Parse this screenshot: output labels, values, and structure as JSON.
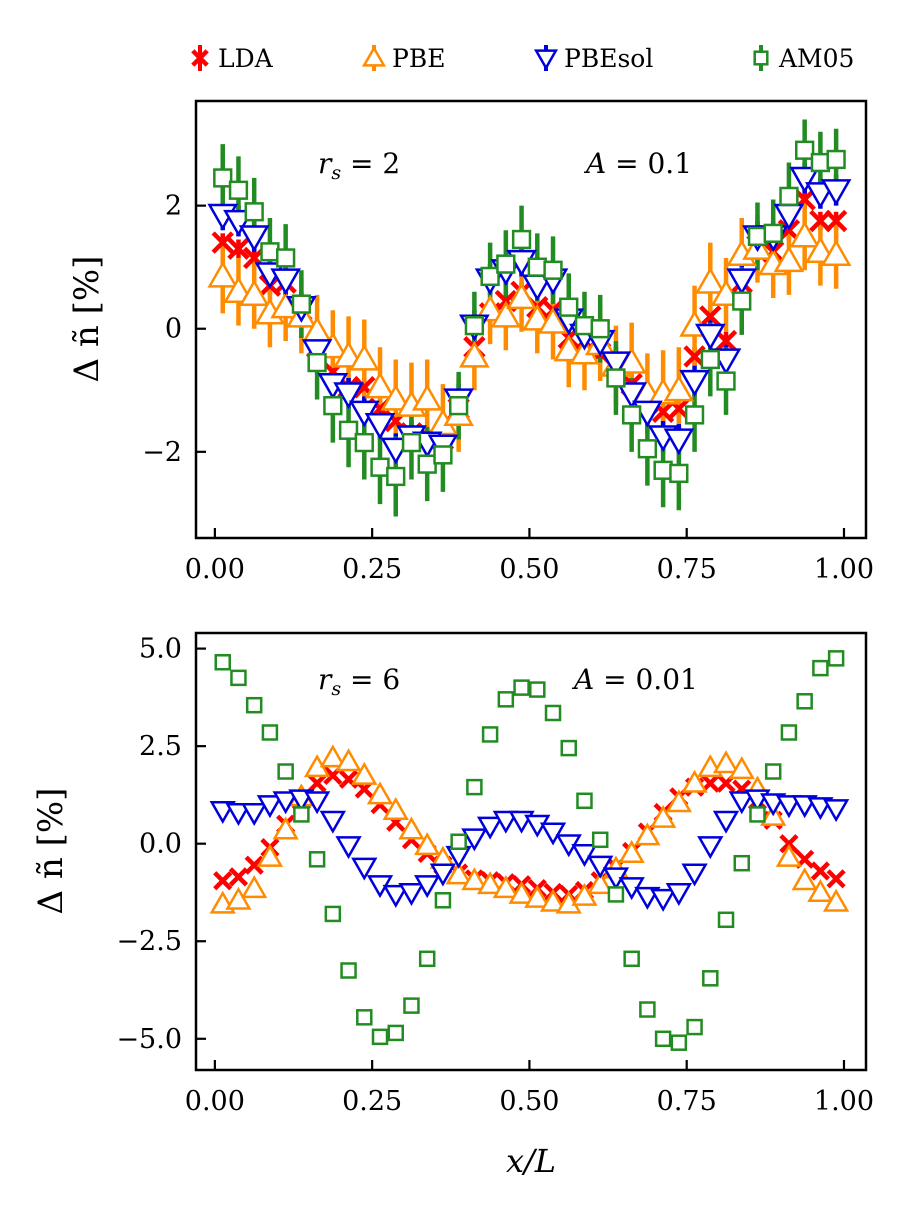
{
  "colors": {
    "LDA": "#ff0000",
    "PBE": "#ff8c00",
    "PBEsol": "#0000dd",
    "AM05": "#228b22"
  },
  "legend": [
    {
      "key": "LDA",
      "label": "LDA",
      "marker": "x"
    },
    {
      "key": "PBE",
      "label": "PBE",
      "marker": "triangle-up"
    },
    {
      "key": "PBEsol",
      "label": "PBEsol",
      "marker": "triangle-down"
    },
    {
      "key": "AM05",
      "label": "AM05",
      "marker": "square"
    }
  ],
  "chart_data": [
    {
      "type": "scatter",
      "xlabel": "",
      "ylabel": "Δ ñ [%]",
      "xlim": [
        -0.03,
        1.035
      ],
      "ylim": [
        -3.4,
        3.7
      ],
      "xticks": [
        0.0,
        0.25,
        0.5,
        0.75,
        1.0
      ],
      "xtick_labels": [
        "0.00",
        "0.25",
        "0.50",
        "0.75",
        "1.00"
      ],
      "yticks": [
        -2,
        0,
        2
      ],
      "ytick_labels": [
        "−2",
        "0",
        "2"
      ],
      "annotations": [
        {
          "text": "r_s = 2",
          "x": 0.25,
          "y": 2.7
        },
        {
          "text": "A = 0.1",
          "x": 0.7,
          "y": 2.7
        }
      ],
      "x": [
        0.0125,
        0.0375,
        0.0625,
        0.0875,
        0.1125,
        0.1375,
        0.1625,
        0.1875,
        0.2125,
        0.2375,
        0.2625,
        0.2875,
        0.3125,
        0.3375,
        0.3625,
        0.3875,
        0.4125,
        0.4375,
        0.4625,
        0.4875,
        0.5125,
        0.5375,
        0.5625,
        0.5875,
        0.6125,
        0.6375,
        0.6625,
        0.6875,
        0.7125,
        0.7375,
        0.7625,
        0.7875,
        0.8125,
        0.8375,
        0.8625,
        0.8875,
        0.9125,
        0.9375,
        0.9625,
        0.9875
      ],
      "series": [
        {
          "name": "LDA",
          "values": [
            1.4,
            1.3,
            1.15,
            0.7,
            0.75,
            0.3,
            -0.3,
            -0.7,
            -0.95,
            -0.95,
            -1.3,
            -1.5,
            -1.7,
            -1.75,
            -1.8,
            -1.3,
            -0.3,
            0.25,
            0.45,
            0.6,
            0.35,
            0.3,
            -0.15,
            -0.2,
            -0.4,
            -0.6,
            -0.9,
            -1.2,
            -1.35,
            -1.3,
            -0.45,
            0.2,
            -0.2,
            0.75,
            1.35,
            1.25,
            1.6,
            2.1,
            1.75,
            1.75
          ],
          "errors": [
            0.15,
            0.15,
            0.15,
            0.15,
            0.15,
            0.15,
            0.15,
            0.15,
            0.15,
            0.15,
            0.15,
            0.15,
            0.15,
            0.15,
            0.15,
            0.15,
            0.15,
            0.15,
            0.15,
            0.15,
            0.15,
            0.15,
            0.15,
            0.15,
            0.15,
            0.15,
            0.15,
            0.15,
            0.15,
            0.15,
            0.15,
            0.15,
            0.15,
            0.15,
            0.15,
            0.15,
            0.15,
            0.15,
            0.15,
            0.15
          ]
        },
        {
          "name": "PBE",
          "values": [
            0.85,
            0.6,
            0.55,
            0.25,
            0.35,
            0.2,
            -0.05,
            -0.3,
            -0.45,
            -0.5,
            -0.95,
            -1.15,
            -1.25,
            -1.15,
            -1.55,
            -1.4,
            -0.45,
            0.3,
            0.2,
            0.5,
            0.15,
            0.1,
            -0.35,
            -0.4,
            -0.25,
            -0.6,
            -0.55,
            -1.05,
            -1.05,
            -1.0,
            0.05,
            0.75,
            0.55,
            1.2,
            1.3,
            1.05,
            1.1,
            1.5,
            1.25,
            1.2
          ],
          "errors": [
            0.6,
            0.55,
            0.55,
            0.55,
            0.55,
            0.6,
            0.6,
            0.6,
            0.65,
            0.65,
            0.65,
            0.65,
            0.7,
            0.65,
            0.65,
            0.6,
            0.55,
            0.55,
            0.55,
            0.55,
            0.55,
            0.6,
            0.6,
            0.6,
            0.6,
            0.65,
            0.65,
            0.65,
            0.7,
            0.7,
            0.65,
            0.65,
            0.6,
            0.6,
            0.55,
            0.55,
            0.55,
            0.55,
            0.55,
            0.55
          ]
        },
        {
          "name": "PBEsol",
          "values": [
            1.85,
            1.75,
            1.5,
            0.9,
            0.8,
            0.35,
            -0.35,
            -0.9,
            -1.05,
            -1.35,
            -1.55,
            -1.95,
            -1.75,
            -1.85,
            -1.9,
            -1.15,
            0.05,
            0.8,
            0.95,
            1.1,
            0.7,
            0.8,
            0.15,
            -0.1,
            -0.2,
            -0.55,
            -1.05,
            -1.35,
            -1.75,
            -1.8,
            -0.85,
            -0.1,
            -0.5,
            0.8,
            1.5,
            1.5,
            1.85,
            2.45,
            2.2,
            2.25
          ],
          "errors": [
            0.25,
            0.25,
            0.25,
            0.25,
            0.25,
            0.25,
            0.25,
            0.25,
            0.25,
            0.25,
            0.25,
            0.25,
            0.25,
            0.25,
            0.25,
            0.25,
            0.25,
            0.25,
            0.25,
            0.25,
            0.25,
            0.25,
            0.25,
            0.25,
            0.25,
            0.25,
            0.25,
            0.25,
            0.25,
            0.25,
            0.25,
            0.25,
            0.25,
            0.25,
            0.25,
            0.25,
            0.25,
            0.25,
            0.25,
            0.25
          ]
        },
        {
          "name": "AM05",
          "values": [
            2.45,
            2.25,
            1.9,
            1.25,
            1.15,
            0.4,
            -0.55,
            -1.25,
            -1.65,
            -1.85,
            -2.25,
            -2.4,
            -1.85,
            -2.2,
            -2.05,
            -1.25,
            0.05,
            0.85,
            1.05,
            1.45,
            1.0,
            0.95,
            0.35,
            0.05,
            0.0,
            -0.8,
            -1.4,
            -1.95,
            -2.3,
            -2.35,
            -1.4,
            -0.5,
            -0.85,
            0.45,
            1.5,
            1.55,
            2.15,
            2.9,
            2.7,
            2.75
          ],
          "errors": [
            0.55,
            0.55,
            0.55,
            0.55,
            0.55,
            0.55,
            0.6,
            0.6,
            0.6,
            0.6,
            0.6,
            0.65,
            0.6,
            0.6,
            0.6,
            0.55,
            0.55,
            0.55,
            0.55,
            0.55,
            0.55,
            0.55,
            0.55,
            0.55,
            0.55,
            0.6,
            0.6,
            0.6,
            0.6,
            0.6,
            0.6,
            0.6,
            0.55,
            0.55,
            0.55,
            0.55,
            0.55,
            0.5,
            0.5,
            0.5
          ]
        }
      ]
    },
    {
      "type": "scatter",
      "xlabel": "x/L",
      "ylabel": "Δ ñ [%]",
      "xlim": [
        -0.03,
        1.035
      ],
      "ylim": [
        -5.8,
        5.4
      ],
      "xticks": [
        0.0,
        0.25,
        0.5,
        0.75,
        1.0
      ],
      "xtick_labels": [
        "0.00",
        "0.25",
        "0.50",
        "0.75",
        "1.00"
      ],
      "yticks": [
        -5.0,
        -2.5,
        0.0,
        2.5,
        5.0
      ],
      "ytick_labels": [
        "−5.0",
        "−2.5",
        "0.0",
        "2.5",
        "5.0"
      ],
      "annotations": [
        {
          "text": "r_s = 6",
          "x": 0.25,
          "y": 4.2
        },
        {
          "text": "A = 0.01",
          "x": 0.7,
          "y": 4.2
        }
      ],
      "x": [
        0.0125,
        0.0375,
        0.0625,
        0.0875,
        0.1125,
        0.1375,
        0.1625,
        0.1875,
        0.2125,
        0.2375,
        0.2625,
        0.2875,
        0.3125,
        0.3375,
        0.3625,
        0.3875,
        0.4125,
        0.4375,
        0.4625,
        0.4875,
        0.5125,
        0.5375,
        0.5625,
        0.5875,
        0.6125,
        0.6375,
        0.6625,
        0.6875,
        0.7125,
        0.7375,
        0.7625,
        0.7875,
        0.8125,
        0.8375,
        0.8625,
        0.8875,
        0.9125,
        0.9375,
        0.9625,
        0.9875
      ],
      "series": [
        {
          "name": "LDA",
          "values": [
            -0.95,
            -0.85,
            -0.55,
            -0.1,
            0.5,
            1.1,
            1.55,
            1.75,
            1.65,
            1.4,
            1.0,
            0.55,
            0.1,
            -0.25,
            -0.55,
            -0.75,
            -0.9,
            -0.95,
            -1.0,
            -1.05,
            -1.15,
            -1.25,
            -1.3,
            -1.2,
            -0.95,
            -0.6,
            -0.2,
            0.3,
            0.8,
            1.2,
            1.45,
            1.55,
            1.55,
            1.4,
            1.1,
            0.6,
            0.0,
            -0.4,
            -0.7,
            -0.9
          ],
          "errors": []
        },
        {
          "name": "PBE",
          "values": [
            -1.55,
            -1.45,
            -1.15,
            -0.35,
            0.35,
            1.2,
            1.95,
            2.2,
            2.1,
            1.75,
            1.25,
            0.85,
            0.35,
            -0.05,
            -0.4,
            -0.8,
            -0.95,
            -1.05,
            -1.15,
            -1.3,
            -1.4,
            -1.5,
            -1.55,
            -1.35,
            -1.05,
            -0.65,
            -0.25,
            0.2,
            0.65,
            1.05,
            1.55,
            1.95,
            2.05,
            1.9,
            1.4,
            0.7,
            -0.35,
            -0.95,
            -1.25,
            -1.5
          ],
          "errors": []
        },
        {
          "name": "PBEsol",
          "values": [
            0.85,
            0.8,
            0.8,
            1.0,
            1.1,
            1.15,
            1.1,
            0.6,
            -0.05,
            -0.6,
            -1.05,
            -1.3,
            -1.25,
            -1.05,
            -0.75,
            -0.3,
            0.15,
            0.45,
            0.6,
            0.6,
            0.5,
            0.3,
            0.0,
            -0.25,
            -0.55,
            -0.85,
            -1.1,
            -1.35,
            -1.4,
            -1.25,
            -0.75,
            -0.05,
            0.6,
            1.1,
            1.15,
            1.05,
            1.0,
            1.0,
            0.95,
            0.9
          ],
          "errors": []
        },
        {
          "name": "AM05",
          "values": [
            4.65,
            4.25,
            3.55,
            2.85,
            1.85,
            0.75,
            -0.4,
            -1.8,
            -3.25,
            -4.45,
            -4.95,
            -4.85,
            -4.15,
            -2.95,
            -1.45,
            0.05,
            1.45,
            2.8,
            3.7,
            4.0,
            3.95,
            3.35,
            2.45,
            1.1,
            0.1,
            -1.3,
            -2.95,
            -4.25,
            -5.0,
            -5.1,
            -4.7,
            -3.45,
            -1.95,
            -0.5,
            0.75,
            1.85,
            2.85,
            3.65,
            4.5,
            4.75
          ],
          "errors": []
        }
      ]
    }
  ]
}
